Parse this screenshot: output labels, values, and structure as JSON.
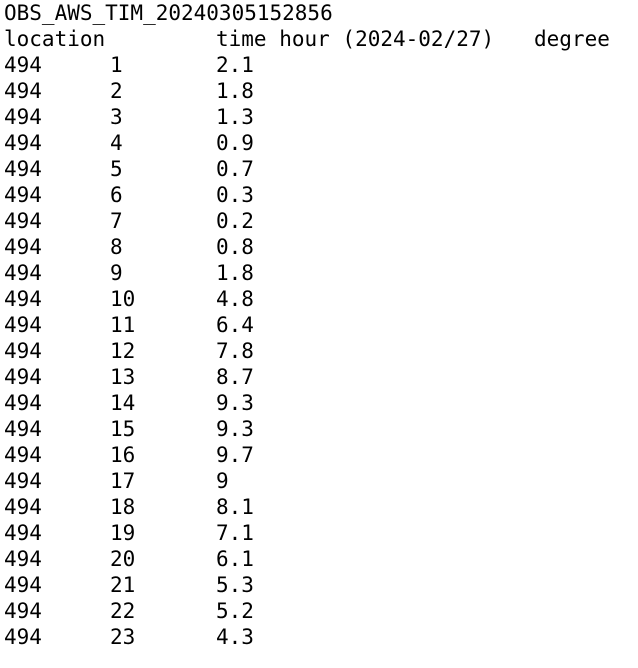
{
  "file_title": "OBS_AWS_TIM_20240305152856",
  "header": {
    "location": "location",
    "time": "time hour (2024-02/27)",
    "degree": "degree"
  },
  "rows": [
    {
      "location": "494",
      "hour": "1",
      "degree": "2.1"
    },
    {
      "location": "494",
      "hour": "2",
      "degree": "1.8"
    },
    {
      "location": "494",
      "hour": "3",
      "degree": "1.3"
    },
    {
      "location": "494",
      "hour": "4",
      "degree": "0.9"
    },
    {
      "location": "494",
      "hour": "5",
      "degree": "0.7"
    },
    {
      "location": "494",
      "hour": "6",
      "degree": "0.3"
    },
    {
      "location": "494",
      "hour": "7",
      "degree": "0.2"
    },
    {
      "location": "494",
      "hour": "8",
      "degree": "0.8"
    },
    {
      "location": "494",
      "hour": "9",
      "degree": "1.8"
    },
    {
      "location": "494",
      "hour": "10",
      "degree": "4.8"
    },
    {
      "location": "494",
      "hour": "11",
      "degree": "6.4"
    },
    {
      "location": "494",
      "hour": "12",
      "degree": "7.8"
    },
    {
      "location": "494",
      "hour": "13",
      "degree": "8.7"
    },
    {
      "location": "494",
      "hour": "14",
      "degree": "9.3"
    },
    {
      "location": "494",
      "hour": "15",
      "degree": "9.3"
    },
    {
      "location": "494",
      "hour": "16",
      "degree": "9.7"
    },
    {
      "location": "494",
      "hour": "17",
      "degree": "9"
    },
    {
      "location": "494",
      "hour": "18",
      "degree": "8.1"
    },
    {
      "location": "494",
      "hour": "19",
      "degree": "7.1"
    },
    {
      "location": "494",
      "hour": "20",
      "degree": "6.1"
    },
    {
      "location": "494",
      "hour": "21",
      "degree": "5.3"
    },
    {
      "location": "494",
      "hour": "22",
      "degree": "5.2"
    },
    {
      "location": "494",
      "hour": "23",
      "degree": "4.3"
    }
  ]
}
